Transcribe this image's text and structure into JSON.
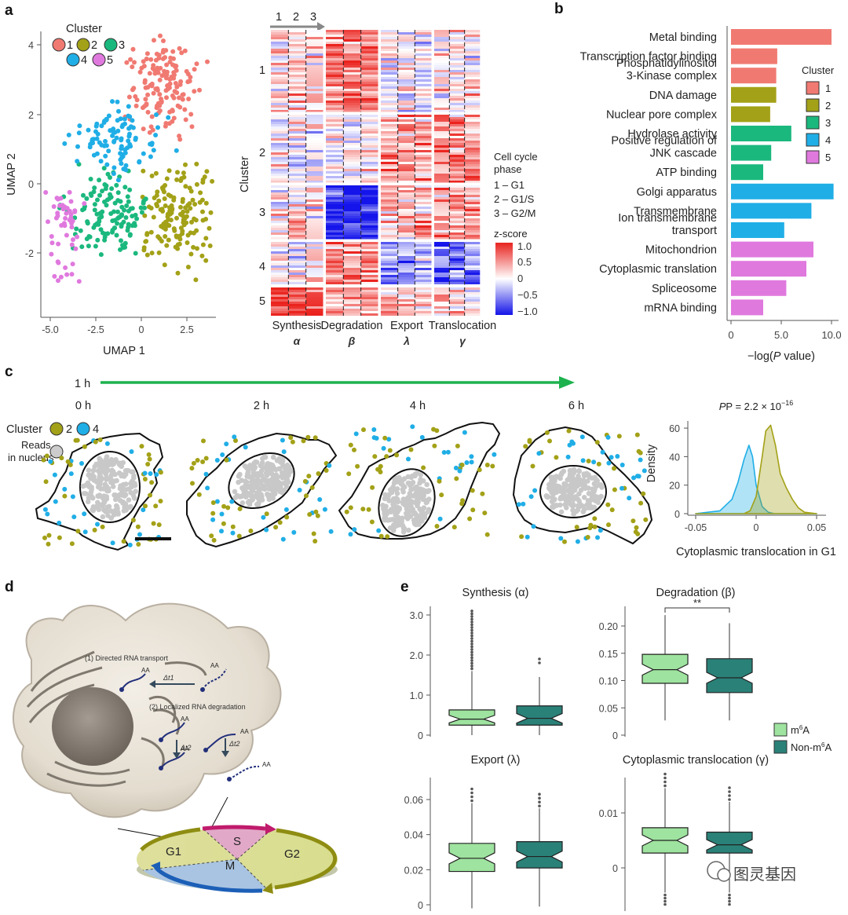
{
  "panels": {
    "a": "a",
    "b": "b",
    "c": "c",
    "d": "d",
    "e": "e"
  },
  "colors": {
    "c1": "#f07a72",
    "c2": "#a3a117",
    "c3": "#1bb87e",
    "c4": "#20aee6",
    "c5": "#e079de",
    "m6a": "#9ee39f",
    "nonm6a": "#2a8178",
    "green_arrow": "#1db24e"
  },
  "umap": {
    "legend_title": "Cluster",
    "cluster_labels": [
      "1",
      "2",
      "3",
      "4",
      "5"
    ],
    "xlabel": "UMAP 1",
    "ylabel": "UMAP 2",
    "xticks": [
      "-5.0",
      "-2.5",
      "0",
      "2.5"
    ],
    "yticks": [
      "4",
      "2",
      "0",
      "-2"
    ]
  },
  "heatmap": {
    "col_header": [
      "1",
      "2",
      "3"
    ],
    "row_labels": [
      "1",
      "2",
      "3",
      "4",
      "5"
    ],
    "row_axis_label": "Cluster",
    "groups": [
      {
        "name": "Synthesis",
        "sym": "α"
      },
      {
        "name": "Degradation",
        "sym": "β"
      },
      {
        "name": "Export",
        "sym": "λ"
      },
      {
        "name": "Translocation",
        "sym": "γ"
      }
    ],
    "phase_title_1": "Cell cycle",
    "phase_title_2": "phase",
    "phases": [
      "1 – G1",
      "2 – G1/S",
      "3 – G2/M"
    ],
    "zscore_title": "z-score",
    "zscore_ticks": [
      "1.0",
      "0.5",
      "0",
      "−0.5",
      "−1.0"
    ]
  },
  "chart_data": [
    {
      "type": "bar",
      "orientation": "horizontal",
      "title": "",
      "xlabel": "−log(P value)",
      "ylabel": "",
      "categories": [
        "Metal binding",
        "Transcription factor binding",
        "Phosphatidylinositol 3-Kinase complex",
        "DNA damage",
        "Nuclear pore complex",
        "Hydrolase activity",
        "Positive regulation of JNK cascade",
        "ATP binding",
        "Golgi apparatus",
        "Transmembrane",
        "Ion transmembrane transport",
        "Mitochondrion",
        "Cytoplasmic translation",
        "Spliceosome",
        "mRNA binding"
      ],
      "values": [
        10.0,
        4.6,
        4.5,
        4.5,
        3.9,
        6.0,
        4.0,
        3.2,
        10.2,
        8.0,
        5.3,
        8.2,
        7.5,
        5.5,
        3.2
      ],
      "cluster": [
        "1",
        "1",
        "1",
        "2",
        "2",
        "3",
        "3",
        "3",
        "4",
        "4",
        "4",
        "5",
        "5",
        "5",
        "5"
      ],
      "xlim": [
        0,
        10.5
      ],
      "xticks": [
        "0",
        "5.0",
        "10.0"
      ],
      "legend_title": "Cluster",
      "legend": [
        "1",
        "2",
        "3",
        "4",
        "5"
      ]
    },
    {
      "type": "area",
      "title": "P = 2.2 × 10−16",
      "xlabel": "Cytoplasmic translocation in G1",
      "ylabel": "Density",
      "xlim": [
        -0.05,
        0.05
      ],
      "ylim": [
        0,
        65
      ],
      "series": [
        {
          "name": "Cluster 4",
          "x": [
            -0.05,
            -0.04,
            -0.03,
            -0.02,
            -0.015,
            -0.01,
            -0.006,
            -0.003,
            0.0,
            0.005,
            0.01,
            0.015,
            0.02,
            0.03,
            0.05
          ],
          "y": [
            0,
            1,
            2,
            10,
            22,
            38,
            48,
            40,
            20,
            5,
            1,
            0,
            0,
            0,
            0
          ]
        },
        {
          "name": "Cluster 2",
          "x": [
            -0.05,
            -0.02,
            -0.01,
            -0.005,
            0.0,
            0.005,
            0.008,
            0.012,
            0.016,
            0.02,
            0.025,
            0.03,
            0.035,
            0.04,
            0.05
          ],
          "y": [
            0,
            0,
            0,
            2,
            12,
            40,
            58,
            62,
            48,
            28,
            18,
            10,
            4,
            1,
            0
          ]
        }
      ],
      "xticks": [
        "-0.05",
        "0",
        "0.05"
      ],
      "yticks": [
        "0",
        "20",
        "40",
        "60"
      ]
    },
    {
      "type": "box",
      "title": "Synthesis (α)",
      "ylim": [
        0,
        3.0
      ],
      "yticks": [
        "0",
        "1.0",
        "2.0",
        "3.0"
      ],
      "series": [
        {
          "name": "m6A",
          "q1": 0.25,
          "median": 0.4,
          "q3": 0.63,
          "whisker_low": 0,
          "whisker_high": 1.6
        },
        {
          "name": "Non-m6A",
          "q1": 0.25,
          "median": 0.42,
          "q3": 0.73,
          "whisker_low": 0,
          "whisker_high": 1.45
        }
      ]
    },
    {
      "type": "box",
      "title": "Degradation (β)",
      "ylim": [
        0,
        0.2
      ],
      "yticks": [
        "0",
        "0.05",
        "0.10",
        "0.15",
        "0.20"
      ],
      "annotation": "**",
      "series": [
        {
          "name": "m6A",
          "q1": 0.095,
          "median": 0.12,
          "q3": 0.148,
          "whisker_low": 0.027,
          "whisker_high": 0.22
        },
        {
          "name": "Non-m6A",
          "q1": 0.078,
          "median": 0.105,
          "q3": 0.14,
          "whisker_low": 0.027,
          "whisker_high": 0.205
        }
      ]
    },
    {
      "type": "box",
      "title": "Export (λ)",
      "ylim": [
        0,
        0.06
      ],
      "yticks": [
        "0",
        "0.02",
        "0.04",
        "0.06"
      ],
      "series": [
        {
          "name": "m6A",
          "q1": 0.019,
          "median": 0.0265,
          "q3": 0.035,
          "whisker_low": -0.002,
          "whisker_high": 0.058
        },
        {
          "name": "Non-m6A",
          "q1": 0.021,
          "median": 0.0275,
          "q3": 0.036,
          "whisker_low": -0.001,
          "whisker_high": 0.055
        }
      ]
    },
    {
      "type": "box",
      "title": "Cytoplasmic translocation (γ)",
      "ylim": [
        -0.005,
        0.015
      ],
      "yticks": [
        "0",
        "0.01"
      ],
      "series": [
        {
          "name": "m6A",
          "q1": 0.0027,
          "median": 0.005,
          "q3": 0.0073,
          "whisker_low": -0.0045,
          "whisker_high": 0.0145
        },
        {
          "name": "Non-m6A",
          "q1": 0.0027,
          "median": 0.0042,
          "q3": 0.0065,
          "whisker_low": -0.0045,
          "whisker_high": 0.012
        }
      ]
    }
  ],
  "panel_b": {
    "labels": [
      [
        "Metal binding"
      ],
      [
        "Transcription factor binding"
      ],
      [
        "Phosphatidylinositol",
        "3-Kinase complex"
      ],
      [
        "DNA damage"
      ],
      [
        "Nuclear pore complex"
      ],
      [
        "Hydrolase activity"
      ],
      [
        "Positive regulation of",
        "JNK cascade"
      ],
      [
        "ATP binding"
      ],
      [
        "Golgi apparatus"
      ],
      [
        "Transmembrane"
      ],
      [
        "Ion transmembrane",
        "transport"
      ],
      [
        "Mitochondrion"
      ],
      [
        "Cytoplasmic translation"
      ],
      [
        "Spliceosome"
      ],
      [
        "mRNA binding"
      ]
    ],
    "xlabel_pre": "−log(",
    "xlabel_p": "P",
    "xlabel_post": " value)"
  },
  "panel_c": {
    "timeline_label": "1 h",
    "timepoints": [
      "0 h",
      "2 h",
      "4 h",
      "6 h"
    ],
    "legend_cluster": "Cluster",
    "legend_c2": "2",
    "legend_c4": "4",
    "legend_reads_1": "Reads",
    "legend_reads_2": "in nucleus",
    "density_title_pre": "P = 2.2 × 10",
    "density_title_exp": "−16",
    "density_ylabel": "Density",
    "density_xlabel": "Cytoplasmic translocation in G1"
  },
  "panel_d": {
    "label_transport": "(1) Directed RNA transport",
    "label_degradation": "(2) Localized RNA degradation",
    "dt1": "Δt1",
    "dt2a": "Δt2",
    "dt2b": "Δt2",
    "aa": "AA",
    "phases": [
      "G1",
      "S",
      "G2",
      "M"
    ]
  },
  "panel_e": {
    "legend_m6a_pre": "m",
    "legend_m6a_sup": "6",
    "legend_m6a_post": "A",
    "legend_non_pre": "Non-m",
    "legend_non_sup": "6",
    "legend_non_post": "A"
  },
  "watermark": "图灵基因"
}
